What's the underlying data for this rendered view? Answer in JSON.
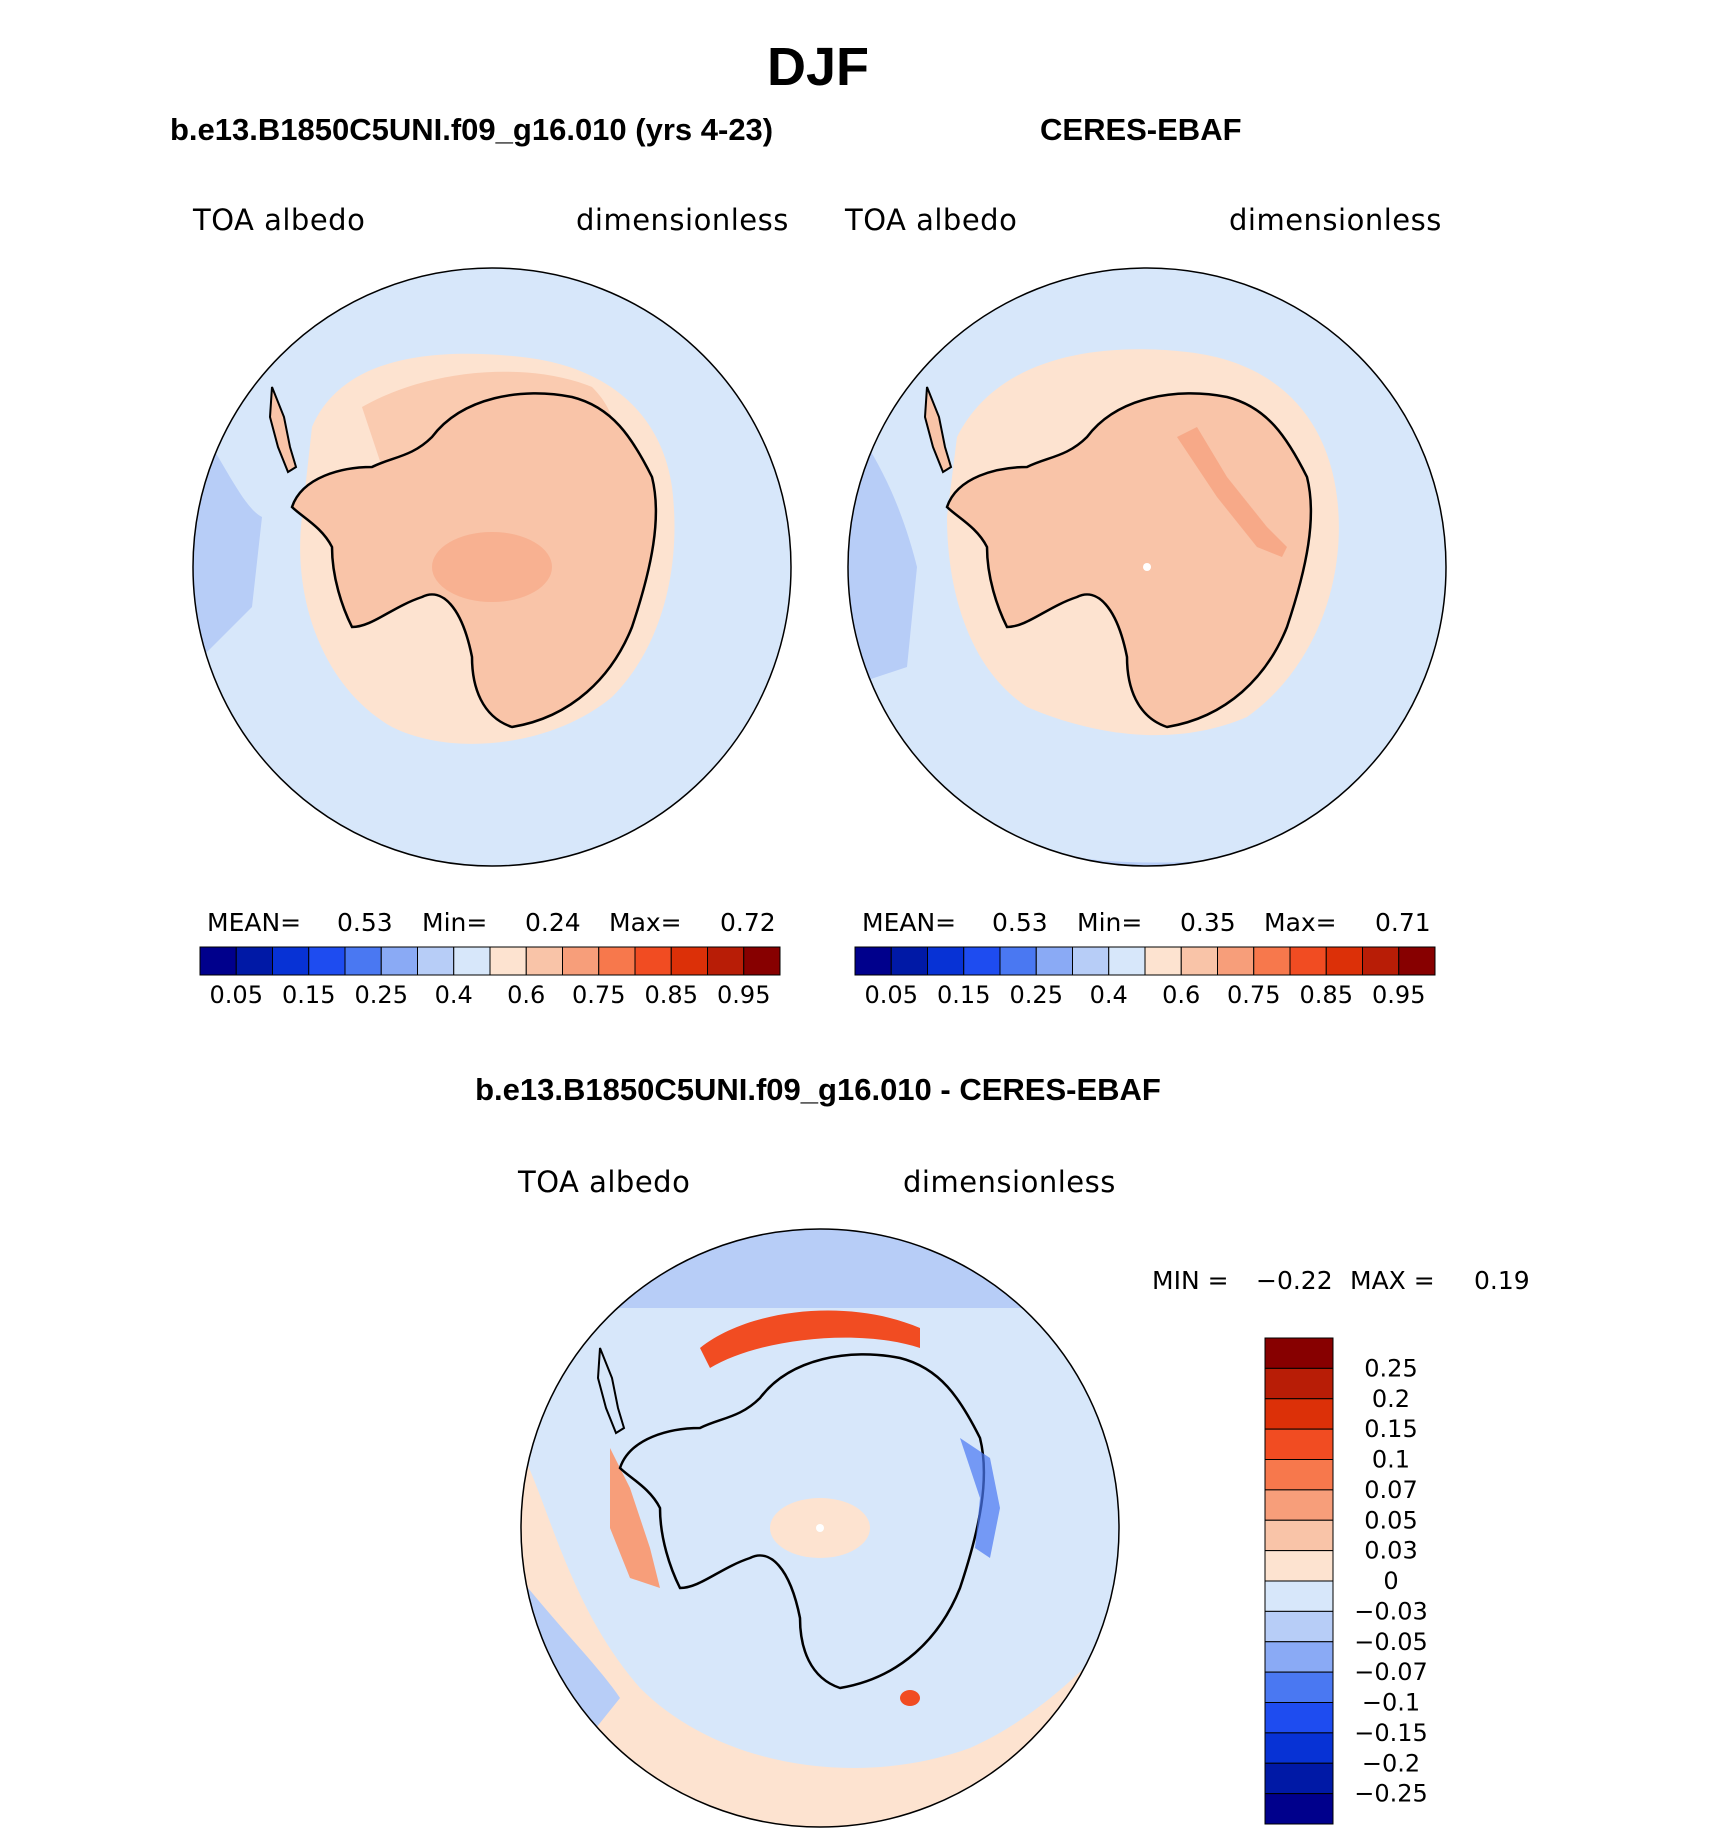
{
  "figure": {
    "main_title": "DJF",
    "panels": [
      {
        "id": "model",
        "title": "b.e13.B1850C5UNI.f09_g16.010 (yrs 4-23)",
        "left_label": "TOA albedo",
        "right_label": "dimensionless",
        "stats": {
          "mean_label": "MEAN=",
          "mean": "0.53",
          "min_label": "Min=",
          "min": "0.24",
          "max_label": "Max=",
          "max": "0.72"
        }
      },
      {
        "id": "obs",
        "title": "CERES-EBAF",
        "left_label": "TOA albedo",
        "right_label": "dimensionless",
        "stats": {
          "mean_label": "MEAN=",
          "mean": "0.53",
          "min_label": "Min=",
          "min": "0.35",
          "max_label": "Max=",
          "max": "0.71"
        }
      }
    ],
    "diff_panel": {
      "title": "b.e13.B1850C5UNI.f09_g16.010 - CERES-EBAF",
      "left_label": "TOA albedo",
      "right_label": "dimensionless",
      "minmax": {
        "min_label": "MIN =",
        "min": "−0.22",
        "max_label": "MAX =",
        "max": "0.19"
      }
    }
  },
  "chart_data": [
    {
      "type": "heatmap",
      "projection": "south-polar stereographic",
      "title": "b.e13.B1850C5UNI.f09_g16.010 (yrs 4-23)",
      "variable": "TOA albedo",
      "units": "dimensionless",
      "mean": 0.53,
      "min": 0.24,
      "max": 0.72,
      "colorbar_ticks": [
        "0.05",
        "0.15",
        "0.25",
        "0.4",
        "0.6",
        "0.75",
        "0.85",
        "0.95"
      ],
      "colorbar_levels": [
        0.05,
        0.1,
        0.15,
        0.2,
        0.25,
        0.3,
        0.4,
        0.5,
        0.6,
        0.7,
        0.75,
        0.8,
        0.85,
        0.9,
        0.95
      ],
      "colorbar_colors": [
        "#00008c",
        "#0019a6",
        "#0732d5",
        "#1e4cf0",
        "#4a78f2",
        "#8aaaf5",
        "#b7cdf7",
        "#d7e7fa",
        "#fde3d0",
        "#f9c4a8",
        "#f79e7a",
        "#f7784c",
        "#f14c22",
        "#dc3008",
        "#b81d06",
        "#870000"
      ]
    },
    {
      "type": "heatmap",
      "projection": "south-polar stereographic",
      "title": "CERES-EBAF",
      "variable": "TOA albedo",
      "units": "dimensionless",
      "mean": 0.53,
      "min": 0.35,
      "max": 0.71,
      "colorbar_ticks": [
        "0.05",
        "0.15",
        "0.25",
        "0.4",
        "0.6",
        "0.75",
        "0.85",
        "0.95"
      ],
      "colorbar_levels": [
        0.05,
        0.1,
        0.15,
        0.2,
        0.25,
        0.3,
        0.4,
        0.5,
        0.6,
        0.7,
        0.75,
        0.8,
        0.85,
        0.9,
        0.95
      ],
      "colorbar_colors": [
        "#00008c",
        "#0019a6",
        "#0732d5",
        "#1e4cf0",
        "#4a78f2",
        "#8aaaf5",
        "#b7cdf7",
        "#d7e7fa",
        "#fde3d0",
        "#f9c4a8",
        "#f79e7a",
        "#f7784c",
        "#f14c22",
        "#dc3008",
        "#b81d06",
        "#870000"
      ]
    },
    {
      "type": "heatmap",
      "projection": "south-polar stereographic",
      "title": "b.e13.B1850C5UNI.f09_g16.010 - CERES-EBAF",
      "variable": "TOA albedo",
      "units": "dimensionless",
      "min": -0.22,
      "max": 0.19,
      "colorbar_orientation": "vertical",
      "colorbar_ticks": [
        "0.25",
        "0.2",
        "0.15",
        "0.1",
        "0.07",
        "0.05",
        "0.03",
        "0",
        "−0.03",
        "−0.05",
        "−0.07",
        "−0.1",
        "−0.15",
        "−0.2",
        "−0.25"
      ],
      "colorbar_colors": [
        "#870000",
        "#b81d06",
        "#dc3008",
        "#f14c22",
        "#f7784c",
        "#f79e7a",
        "#f9c4a8",
        "#fde3d0",
        "#d7e7fa",
        "#b7cdf7",
        "#8aaaf5",
        "#4a78f2",
        "#1e4cf0",
        "#0732d5",
        "#0019a6",
        "#00008c"
      ]
    }
  ]
}
